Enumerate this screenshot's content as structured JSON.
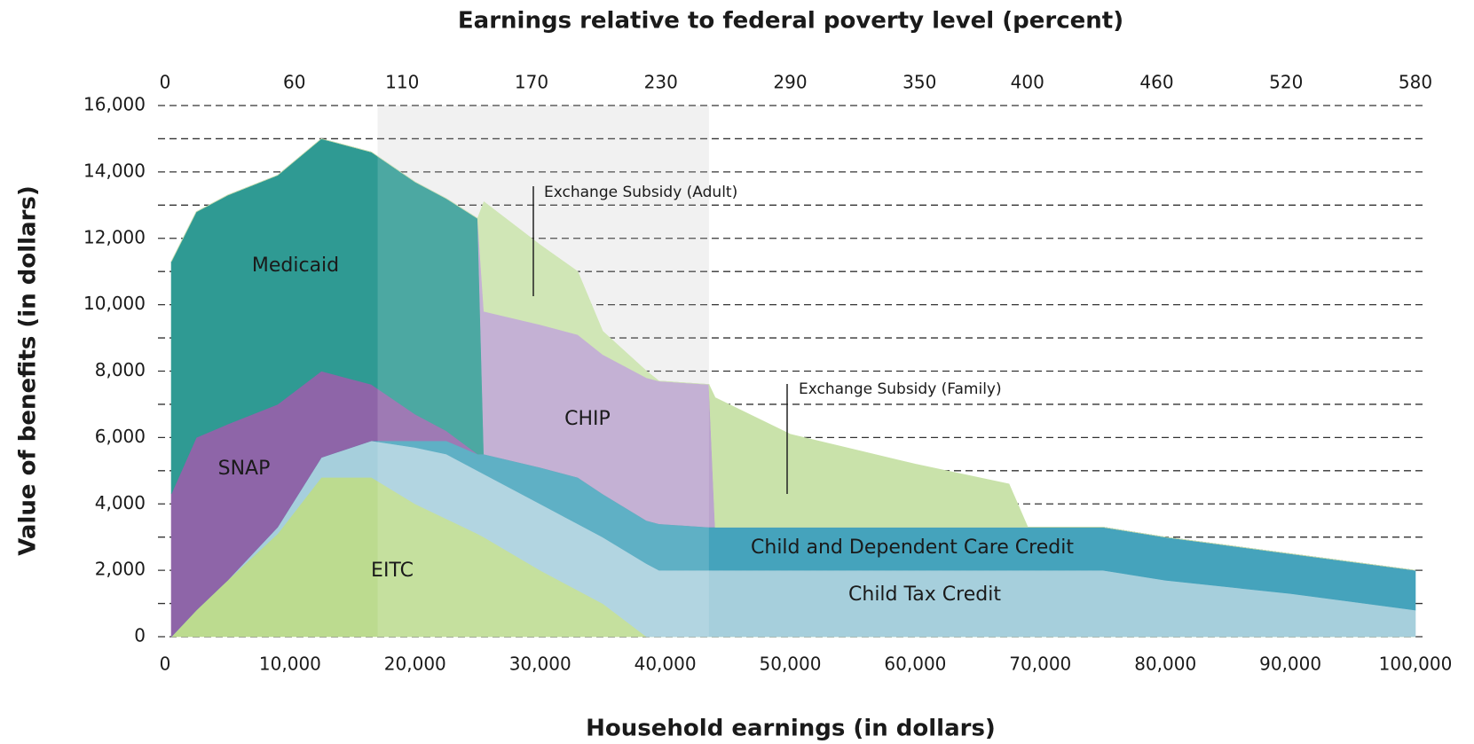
{
  "chart_data": {
    "type": "stacked_area",
    "xlabel": "Household earnings (in dollars)",
    "ylabel": "Value of benefits (in dollars)",
    "x2label": "Earnings relative to federal poverty level (percent)",
    "x": [
      500,
      2500,
      5000,
      9000,
      12500,
      16500,
      20000,
      22500,
      25000,
      25500,
      30000,
      33000,
      35000,
      38500,
      39500,
      43500,
      44000,
      50000,
      60000,
      67500,
      69000,
      75000,
      80000,
      90000,
      100000
    ],
    "series": [
      {
        "name": "EITC",
        "color": "#bcdb8f",
        "values": [
          0,
          800,
          1700,
          3100,
          4800,
          4800,
          4000,
          3550,
          3100,
          3000,
          2000,
          1400,
          1000,
          0,
          0,
          0,
          0,
          0,
          0,
          0,
          0,
          0,
          0,
          0,
          0
        ]
      },
      {
        "name": "Child Tax Credit",
        "color": "#a6cfdc",
        "values": [
          0,
          0,
          0,
          200,
          600,
          1100,
          1700,
          1950,
          1900,
          1900,
          2000,
          2000,
          2000,
          2200,
          2000,
          2000,
          2000,
          2000,
          2000,
          2000,
          2000,
          2000,
          1700,
          1300,
          800
        ]
      },
      {
        "name": "Child and Dependent Care Credit",
        "color": "#45a3bc",
        "values": [
          0,
          0,
          0,
          0,
          0,
          0,
          200,
          400,
          500,
          600,
          1100,
          1400,
          1300,
          1300,
          1400,
          1300,
          1300,
          1300,
          1300,
          1300,
          1300,
          1300,
          1300,
          1200,
          1200
        ]
      },
      {
        "name": "SNAP",
        "color": "#8e65a8",
        "values": [
          4300,
          5200,
          4700,
          3700,
          2600,
          1700,
          800,
          300,
          0,
          0,
          0,
          0,
          0,
          0,
          0,
          0,
          0,
          0,
          0,
          0,
          0,
          0,
          0,
          0,
          0
        ]
      },
      {
        "name": "Medicaid",
        "color": "#2f9a93",
        "values": [
          7000,
          6800,
          6900,
          6900,
          7000,
          7000,
          7000,
          7000,
          7100,
          0,
          0,
          0,
          0,
          0,
          0,
          0,
          0,
          0,
          0,
          0,
          0,
          0,
          0,
          0,
          0
        ]
      },
      {
        "name": "CHIP",
        "color": "#bba5cd",
        "values": [
          0,
          0,
          0,
          0,
          0,
          0,
          0,
          0,
          0,
          4300,
          4300,
          4300,
          4200,
          4300,
          4300,
          4300,
          0,
          0,
          0,
          0,
          0,
          0,
          0,
          0,
          0
        ]
      },
      {
        "name": "Exchange Subsidy (Adult)",
        "color": "#c9e2aa",
        "values": [
          0,
          0,
          0,
          0,
          0,
          0,
          0,
          0,
          0,
          3300,
          2400,
          1900,
          700,
          200,
          0,
          0,
          0,
          0,
          0,
          0,
          0,
          0,
          0,
          0,
          0
        ]
      },
      {
        "name": "Exchange Subsidy (Family)",
        "color": "#c9e2aa",
        "values": [
          0,
          0,
          0,
          0,
          0,
          0,
          0,
          0,
          0,
          0,
          0,
          0,
          0,
          0,
          0,
          0,
          3900,
          2800,
          1900,
          1300,
          0,
          0,
          0,
          0,
          0
        ]
      }
    ],
    "xlim": [
      0,
      100000
    ],
    "xticks": [
      0,
      {
        "value": 10000,
        "label": "10,000"
      },
      {
        "value": 20000,
        "label": "20,000"
      },
      {
        "value": 30000,
        "label": "30,000"
      },
      {
        "value": 40000,
        "label": "40,000"
      },
      {
        "value": 50000,
        "label": "50,000"
      },
      {
        "value": 60000,
        "label": "60,000"
      },
      {
        "value": 70000,
        "label": "70,000"
      },
      {
        "value": 80000,
        "label": "80,000"
      },
      {
        "value": 90000,
        "label": "90,000"
      },
      {
        "value": 100000,
        "label": "100,000"
      }
    ],
    "x2lim": [
      0,
      580
    ],
    "x2ticks": [
      0,
      60,
      110,
      170,
      230,
      290,
      350,
      400,
      460,
      520,
      580
    ],
    "ylim": [
      0,
      16000
    ],
    "yticks": [
      0,
      {
        "value": 2000,
        "label": "2,000"
      },
      {
        "value": 4000,
        "label": "4,000"
      },
      {
        "value": 6000,
        "label": "6,000"
      },
      {
        "value": 8000,
        "label": "8,000"
      },
      {
        "value": 10000,
        "label": "10,000"
      },
      {
        "value": 12000,
        "label": "12,000"
      },
      {
        "value": 14000,
        "label": "14,000"
      },
      {
        "value": 16000,
        "label": "16,000"
      }
    ],
    "minor_yticks": [
      1000,
      3000,
      5000,
      7000,
      9000,
      11000,
      13000,
      15000
    ],
    "shaded_x_range": [
      17000,
      43500
    ],
    "grid": true
  }
}
